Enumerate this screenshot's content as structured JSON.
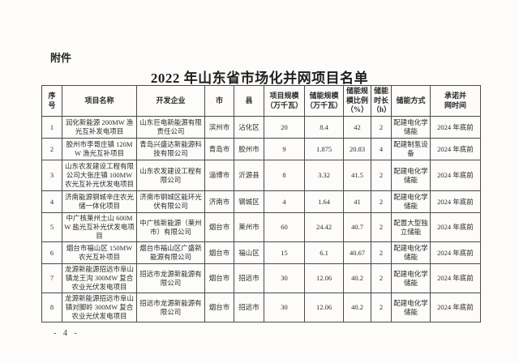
{
  "page": {
    "attachment_label": "附件",
    "title": "2022 年山东省市场化并网项目名单",
    "page_number": "- 4 -"
  },
  "colors": {
    "background": "#fdfcfa",
    "text": "#2b2b2b",
    "table_border": "#4a4a4a"
  },
  "table": {
    "headers": [
      "序\n号",
      "项目名称",
      "开发企业",
      "市",
      "县",
      "项目规模\n（万千瓦）",
      "储能规模\n（万千瓦）",
      "储能规\n模比例\n（%）",
      "储能\n时长\n（h）",
      "储能方式",
      "承诺并\n网时间"
    ],
    "rows": [
      [
        "1",
        "润化新能源 200MW 渔光互补发电项目",
        "山东巨电新能源有限责任公司",
        "滨州市",
        "沾化区",
        "20",
        "8.4",
        "42",
        "2",
        "配建电化学储能",
        "2024 年底前"
      ],
      [
        "2",
        "胶州市李哥庄镇 120MW 渔光互补项目",
        "青岛兴盛达新能源科技有限公司",
        "青岛市",
        "胶州市",
        "9",
        "1.875",
        "20.83",
        "4",
        "配建制氢设备",
        "2024 年底前"
      ],
      [
        "3",
        "山东农发建设工程有限公司大张庄镇 100MW 农光互补光伏发电项目",
        "山东农发建设工程有限公司",
        "淄博市",
        "沂源县",
        "8",
        "3.32",
        "41.5",
        "2",
        "配建电化学储能",
        "2024 年底前"
      ],
      [
        "4",
        "济南能源钢城辛庄农光储一体化项目",
        "济南市钢城区能环光伏有限公司",
        "济南市",
        "钢城区",
        "4",
        "1.64",
        "41",
        "2",
        "配建电化学储能",
        "2024 年底前"
      ],
      [
        "5",
        "中广核莱州土山 600MW 盐光互补光伏发电项目",
        "中广核新能源（莱州市）有限公司",
        "烟台市",
        "莱州市",
        "60",
        "24.42",
        "40.7",
        "2",
        "配置大型独立储能",
        "2024 年底前"
      ],
      [
        "6",
        "烟台市福山区 150MW 农光互补项目",
        "烟台市福山区广盛新能源有限公司",
        "烟台市",
        "福山区",
        "15",
        "6.1",
        "40.67",
        "2",
        "配建电化学储能",
        "2024 年底前"
      ],
      [
        "7",
        "龙源新能源招远市阜山镇龙王沟 300MW 复合农业光伏发电项目",
        "招远市龙源新能源有限公司",
        "烟台市",
        "招远市",
        "30",
        "12.06",
        "40.2",
        "2",
        "配建电化学储能",
        "2024 年底前"
      ],
      [
        "8",
        "龙源新能源招远市阜山镇对脚岭 300MW 复合农业光伏发电项目",
        "招远市龙源新能源有限公司",
        "烟台市",
        "招远市",
        "30",
        "12.06",
        "40.2",
        "2",
        "配建电化学储能",
        "2024 年底前"
      ]
    ]
  }
}
